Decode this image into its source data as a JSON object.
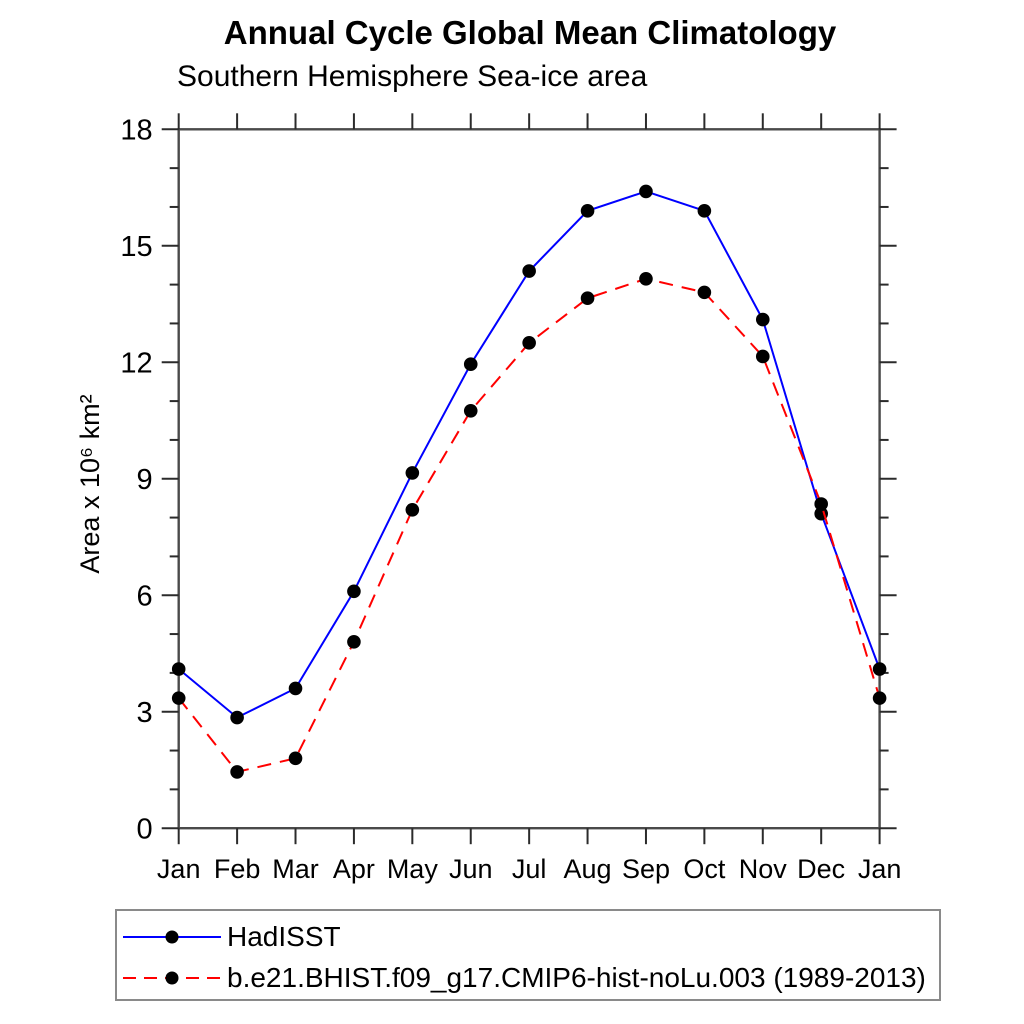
{
  "chart_data": {
    "type": "line",
    "title": "Annual Cycle Global Mean Climatology",
    "subtitle": "Southern Hemisphere Sea-ice area",
    "xlabel": "",
    "ylabel": "Area x 10⁶ km²",
    "x_labels": [
      "Jan",
      "Feb",
      "Mar",
      "Apr",
      "May",
      "Jun",
      "Jul",
      "Aug",
      "Sep",
      "Oct",
      "Nov",
      "Dec",
      "Jan"
    ],
    "ylim": [
      0,
      18
    ],
    "ytick_major": [
      0,
      3,
      6,
      9,
      12,
      15,
      18
    ],
    "ytick_minor_step": 1,
    "grid": false,
    "legend_position": "bottom-left-box",
    "series": [
      {
        "name": "HadISST",
        "color": "#0000ff",
        "line_style": "solid",
        "marker": "filled-circle",
        "marker_color": "#000000",
        "values": [
          4.1,
          2.85,
          3.6,
          6.1,
          9.15,
          11.95,
          14.35,
          15.9,
          16.4,
          15.9,
          13.1,
          8.1,
          4.1
        ]
      },
      {
        "name": "b.e21.BHIST.f09_g17.CMIP6-hist-noLu.003 (1989-2013)",
        "color": "#ff0000",
        "line_style": "dashed",
        "marker": "filled-circle",
        "marker_color": "#000000",
        "values": [
          3.35,
          1.45,
          1.8,
          4.8,
          8.2,
          10.75,
          12.5,
          13.65,
          14.15,
          13.8,
          12.15,
          8.35,
          3.35
        ]
      }
    ]
  }
}
